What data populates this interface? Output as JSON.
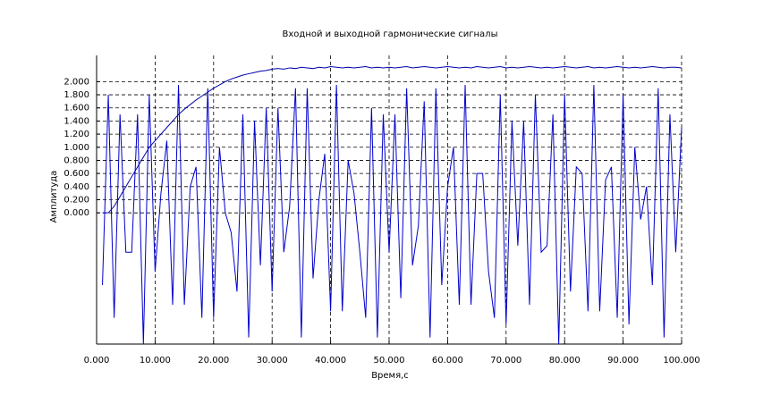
{
  "chart_data": {
    "type": "line",
    "title": "Входной и выходной гармонические сигналы",
    "x_label": "Время,с",
    "y_label": "Амплитуда",
    "xlim": [
      0,
      100
    ],
    "ylim": [
      -2,
      2.4
    ],
    "xticks": [
      {
        "value": 0,
        "label": "0.000"
      },
      {
        "value": 10,
        "label": "10.000"
      },
      {
        "value": 20,
        "label": "20.000"
      },
      {
        "value": 30,
        "label": "30.000"
      },
      {
        "value": 40,
        "label": "40.000"
      },
      {
        "value": 50,
        "label": "50.000"
      },
      {
        "value": 60,
        "label": "60.000"
      },
      {
        "value": 70,
        "label": "70.000"
      },
      {
        "value": 80,
        "label": "80.000"
      },
      {
        "value": 90,
        "label": "90.000"
      },
      {
        "value": 100,
        "label": "100.000"
      }
    ],
    "yticks": [
      {
        "value": 0,
        "label": "0.000"
      },
      {
        "value": 0.2,
        "label": "0.200"
      },
      {
        "value": 0.4,
        "label": "0.400"
      },
      {
        "value": 0.6,
        "label": "0.600"
      },
      {
        "value": 0.8,
        "label": "0.800"
      },
      {
        "value": 1,
        "label": "1.000"
      },
      {
        "value": 1.2,
        "label": "1.200"
      },
      {
        "value": 1.4,
        "label": "1.400"
      },
      {
        "value": 1.6,
        "label": "1.600"
      },
      {
        "value": 1.8,
        "label": "1.800"
      },
      {
        "value": 2,
        "label": "2.000"
      }
    ],
    "grid": true,
    "x": [
      1,
      2,
      3,
      4,
      5,
      6,
      7,
      8,
      9,
      10,
      11,
      12,
      13,
      14,
      15,
      16,
      17,
      18,
      19,
      20,
      21,
      22,
      23,
      24,
      25,
      26,
      27,
      28,
      29,
      30,
      31,
      32,
      33,
      34,
      35,
      36,
      37,
      38,
      39,
      40,
      41,
      42,
      43,
      44,
      45,
      46,
      47,
      48,
      49,
      50,
      51,
      52,
      53,
      54,
      55,
      56,
      57,
      58,
      59,
      60,
      61,
      62,
      63,
      64,
      65,
      66,
      67,
      68,
      69,
      70,
      71,
      72,
      73,
      74,
      75,
      76,
      77,
      78,
      79,
      80,
      81,
      82,
      83,
      84,
      85,
      86,
      87,
      88,
      89,
      90,
      91,
      92,
      93,
      94,
      95,
      96,
      97,
      98,
      99,
      100
    ],
    "series": [
      {
        "color": "#0000cc",
        "values": [
          -1.1,
          1.8,
          -1.6,
          1.5,
          -0.6,
          -0.6,
          1.5,
          -2.0,
          1.8,
          -0.9,
          0.3,
          1.1,
          -1.4,
          1.95,
          -1.4,
          0.4,
          0.7,
          -1.6,
          1.9,
          -1.6,
          1.0,
          0.0,
          -0.3,
          -1.2,
          1.5,
          -1.9,
          1.4,
          -0.8,
          1.6,
          -1.2,
          1.6,
          -0.6,
          0.1,
          1.9,
          -1.9,
          1.9,
          -1.0,
          0.2,
          0.9,
          -1.5,
          1.95,
          -1.5,
          0.8,
          0.3,
          -0.6,
          -1.6,
          1.6,
          -1.9,
          1.5,
          -0.6,
          1.5,
          -1.3,
          1.9,
          -0.8,
          -0.2,
          1.7,
          -1.9,
          1.9,
          -1.1,
          0.4,
          1.0,
          -1.4,
          1.95,
          -1.4,
          0.6,
          0.6,
          -0.9,
          -1.6,
          1.8,
          -1.7,
          1.4,
          -0.5,
          1.4,
          -1.4,
          1.8,
          -0.6,
          -0.5,
          1.5,
          -2.0,
          1.8,
          -1.2,
          0.7,
          0.6,
          -1.5,
          1.95,
          -1.5,
          0.5,
          0.7,
          -1.6,
          1.8,
          -1.7,
          1.0,
          -0.1,
          0.4,
          -1.1,
          1.9,
          -1.9,
          1.5,
          -0.6,
          1.3
        ]
      },
      {
        "color": "#0000aa",
        "values": [
          0.0,
          0.0,
          0.1,
          0.25,
          0.4,
          0.55,
          0.7,
          0.85,
          1.0,
          1.1,
          1.2,
          1.3,
          1.4,
          1.5,
          1.58,
          1.65,
          1.72,
          1.78,
          1.84,
          1.9,
          1.95,
          2.0,
          2.04,
          2.07,
          2.1,
          2.12,
          2.14,
          2.16,
          2.17,
          2.19,
          2.2,
          2.19,
          2.21,
          2.2,
          2.22,
          2.21,
          2.2,
          2.22,
          2.21,
          2.23,
          2.22,
          2.21,
          2.22,
          2.21,
          2.22,
          2.23,
          2.21,
          2.22,
          2.21,
          2.22,
          2.21,
          2.22,
          2.23,
          2.21,
          2.22,
          2.23,
          2.22,
          2.21,
          2.22,
          2.23,
          2.22,
          2.21,
          2.22,
          2.21,
          2.23,
          2.22,
          2.21,
          2.22,
          2.23,
          2.21,
          2.22,
          2.21,
          2.22,
          2.23,
          2.22,
          2.21,
          2.22,
          2.21,
          2.22,
          2.23,
          2.22,
          2.21,
          2.22,
          2.23,
          2.21,
          2.22,
          2.21,
          2.22,
          2.23,
          2.22,
          2.21,
          2.22,
          2.21,
          2.22,
          2.23,
          2.22,
          2.21,
          2.22,
          2.22,
          2.21
        ]
      }
    ]
  }
}
